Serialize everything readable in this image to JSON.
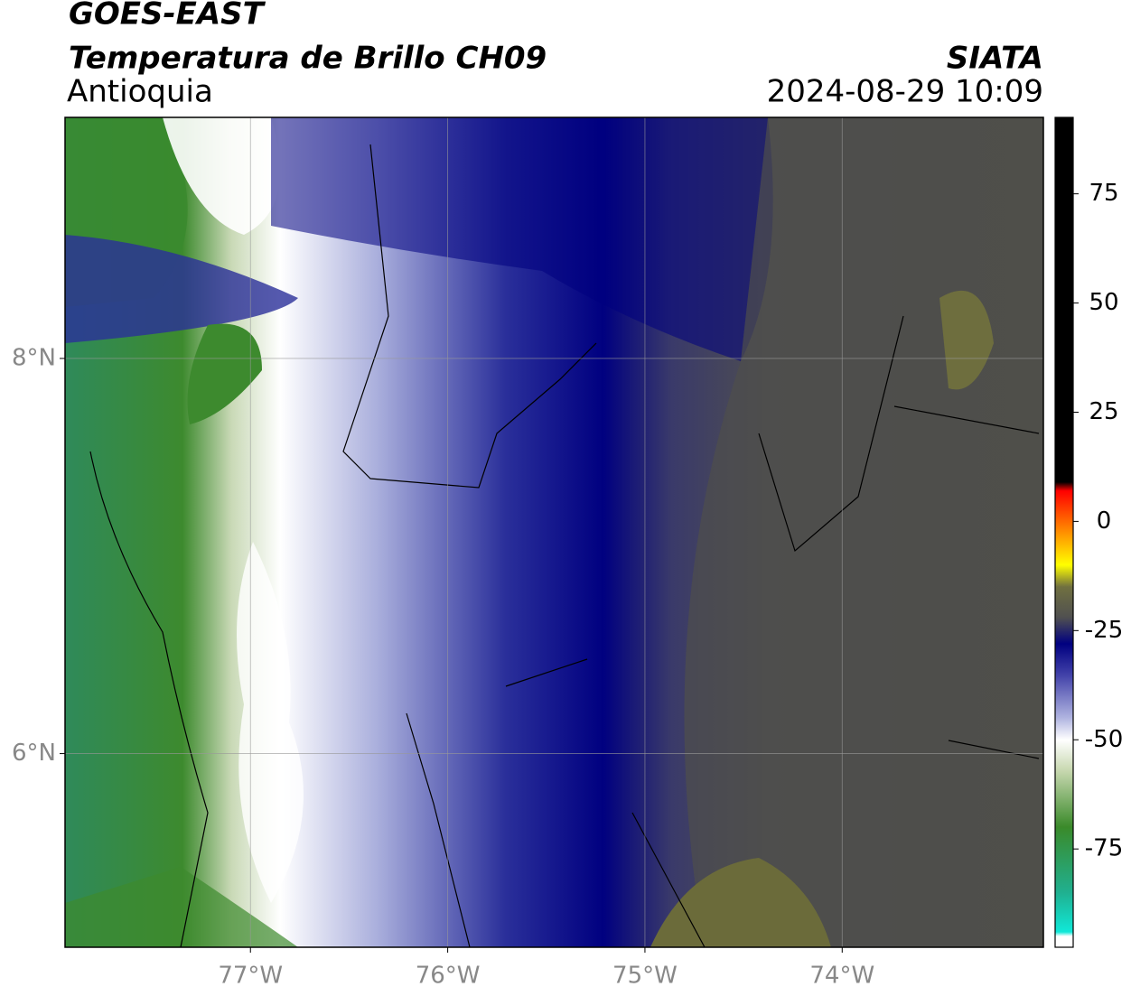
{
  "header": {
    "title": "GOES-EAST",
    "subtitle": "Temperatura de Brillo CH09",
    "region": "Antioquia",
    "source": "SIATA",
    "datetime": "2024-08-29 10:09"
  },
  "map": {
    "xlim": [
      -77.94,
      -72.98
    ],
    "ylim": [
      5.02,
      9.22
    ],
    "xticks": [
      {
        "value": -77,
        "label": "77°W"
      },
      {
        "value": -76,
        "label": "76°W"
      },
      {
        "value": -75,
        "label": "75°W"
      },
      {
        "value": -74,
        "label": "74°W"
      }
    ],
    "yticks": [
      {
        "value": 6,
        "label": "6°N"
      },
      {
        "value": 8,
        "label": "8°N"
      }
    ],
    "grid": true
  },
  "colorbar": {
    "clim": [
      -97.5,
      92.5
    ],
    "ticks": [
      75,
      50,
      25,
      0,
      -25,
      -50,
      -75
    ],
    "colormap": [
      {
        "value": -97.5,
        "color": "#ffffff"
      },
      {
        "value": -95,
        "color": "#ffffff"
      },
      {
        "value": -94,
        "color": "#10e8d8"
      },
      {
        "value": -85,
        "color": "#20b090"
      },
      {
        "value": -70,
        "color": "#3a8a2a"
      },
      {
        "value": -57,
        "color": "#c8d8b0"
      },
      {
        "value": -50,
        "color": "#ffffff"
      },
      {
        "value": -45,
        "color": "#b0b4e0"
      },
      {
        "value": -35,
        "color": "#4040a8"
      },
      {
        "value": -28,
        "color": "#000080"
      },
      {
        "value": -22,
        "color": "#505050"
      },
      {
        "value": -15,
        "color": "#707040"
      },
      {
        "value": -10,
        "color": "#ffff00"
      },
      {
        "value": -2,
        "color": "#ff8800"
      },
      {
        "value": 7,
        "color": "#ff0000"
      },
      {
        "value": 9,
        "color": "#000000"
      },
      {
        "value": 92.5,
        "color": "#000000"
      }
    ]
  }
}
